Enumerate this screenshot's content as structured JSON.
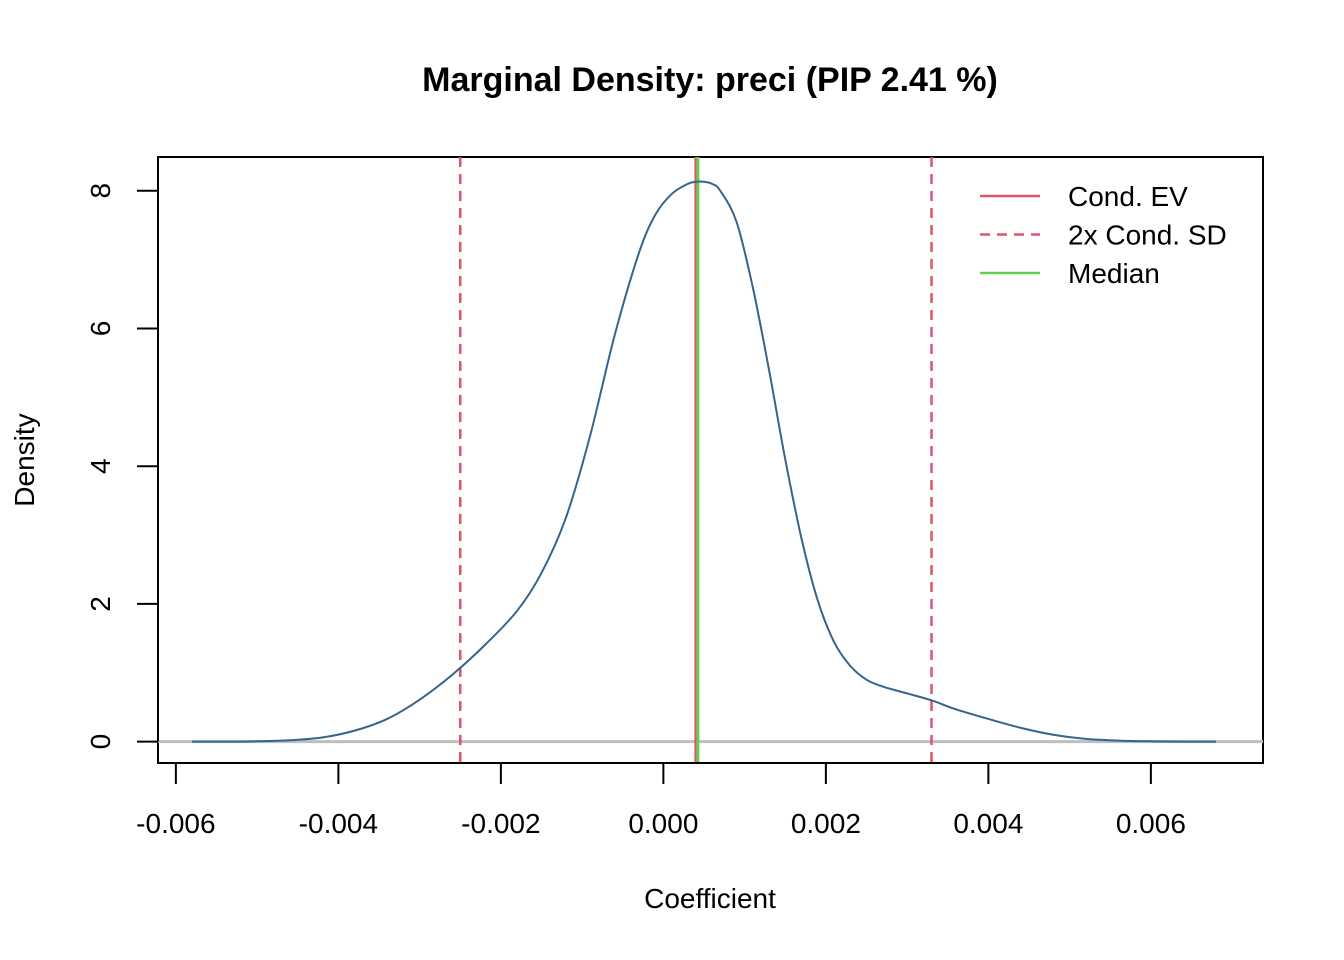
{
  "chart_data": {
    "type": "line",
    "title": "Marginal Density: preci (PIP 2.41 %)",
    "xlabel": "Coefficient",
    "ylabel": "Density",
    "xlim": [
      -0.00622,
      0.00738
    ],
    "ylim": [
      -0.31,
      8.49
    ],
    "x_ticks": [
      -0.006,
      -0.004,
      -0.002,
      0.0,
      0.002,
      0.004,
      0.006
    ],
    "x_tick_labels": [
      "-0.006",
      "-0.004",
      "-0.002",
      "0.000",
      "0.002",
      "0.004",
      "0.006"
    ],
    "y_ticks": [
      0,
      2,
      4,
      6,
      8
    ],
    "y_tick_labels": [
      "0",
      "2",
      "4",
      "6",
      "8"
    ],
    "grid": false,
    "legend_position": "top-right",
    "series": [
      {
        "color": "#36648B",
        "x": [
          -0.0058,
          -0.0054,
          -0.005,
          -0.0046,
          -0.0042,
          -0.0038,
          -0.0034,
          -0.003,
          -0.0026,
          -0.0022,
          -0.0018,
          -0.0015,
          -0.0012,
          -0.0009,
          -0.0006,
          -0.0003,
          -0.0001,
          0.0001,
          0.0003,
          0.0004,
          0.0005,
          0.0006,
          0.0007,
          0.0009,
          0.0011,
          0.0013,
          0.0015,
          0.0017,
          0.0019,
          0.0021,
          0.0023,
          0.0025,
          0.0027,
          0.003,
          0.0033,
          0.0036,
          0.004,
          0.0044,
          0.0048,
          0.0052,
          0.0056,
          0.006,
          0.0064,
          0.0068
        ],
        "values": [
          0.0,
          0.0,
          0.005,
          0.02,
          0.06,
          0.16,
          0.33,
          0.61,
          0.97,
          1.4,
          1.9,
          2.45,
          3.25,
          4.45,
          5.9,
          7.1,
          7.65,
          7.95,
          8.1,
          8.13,
          8.13,
          8.1,
          8.0,
          7.55,
          6.6,
          5.4,
          4.1,
          2.95,
          2.05,
          1.45,
          1.1,
          0.9,
          0.8,
          0.7,
          0.6,
          0.47,
          0.33,
          0.2,
          0.1,
          0.04,
          0.015,
          0.005,
          0.0,
          0.0
        ]
      }
    ],
    "reference_lines": {
      "cond_ev": 0.0004,
      "cond_sd_bounds": [
        -0.0025,
        0.0033
      ],
      "median": 0.0004,
      "zero_line_color": "#BEBEBE"
    },
    "legend": [
      {
        "label": "Cond. EV",
        "color": "#DF536B",
        "style": "solid"
      },
      {
        "label": "2x Cond. SD",
        "color": "#DF536B",
        "style": "dashed"
      },
      {
        "label": "Median",
        "color": "#61D04F",
        "style": "solid"
      }
    ]
  }
}
